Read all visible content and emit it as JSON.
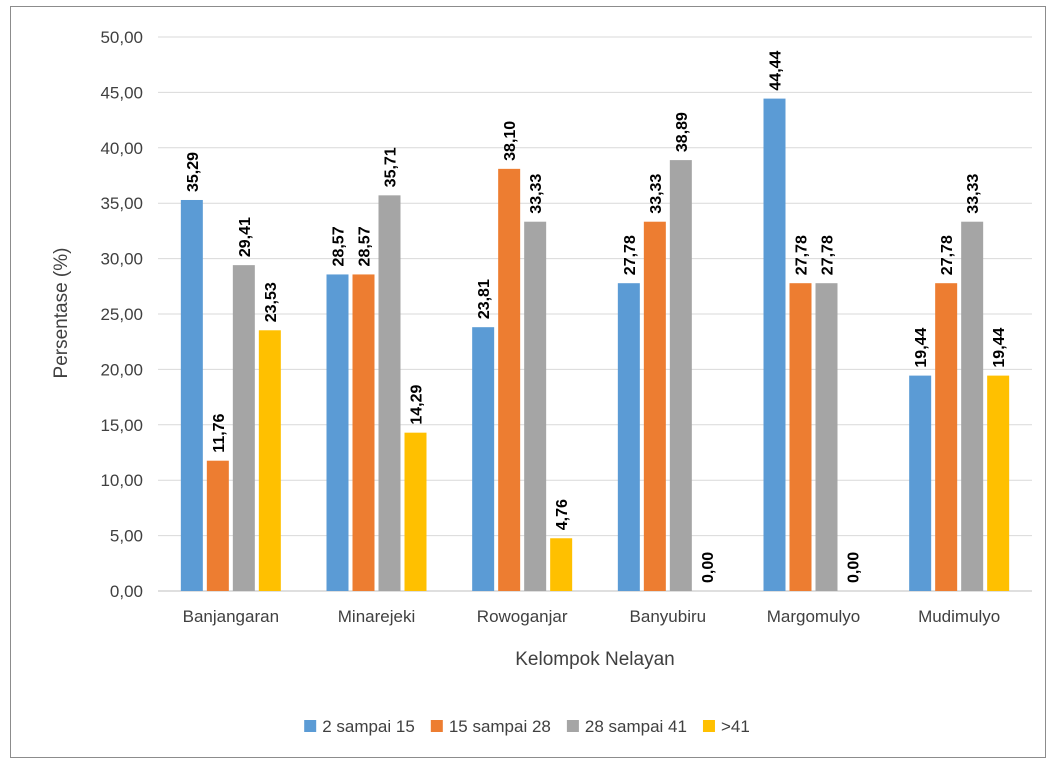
{
  "chart_data": {
    "type": "bar",
    "categories": [
      "Banjangaran",
      "Minarejeki",
      "Rowoganjar",
      "Banyubiru",
      "Margomulyo",
      "Mudimulyo"
    ],
    "series": [
      {
        "name": "2 sampai 15",
        "color": "#5b9bd5",
        "values": [
          35.29,
          28.57,
          23.81,
          27.78,
          44.44,
          19.44
        ],
        "labels": [
          "35,29",
          "28,57",
          "23,81",
          "27,78",
          "44,44",
          "19,44"
        ]
      },
      {
        "name": "15 sampai 28",
        "color": "#ed7d31",
        "values": [
          11.76,
          28.57,
          38.1,
          33.33,
          27.78,
          27.78
        ],
        "labels": [
          "11,76",
          "28,57",
          "38,10",
          "33,33",
          "27,78",
          "27,78"
        ]
      },
      {
        "name": "28 sampai 41",
        "color": "#a5a5a5",
        "values": [
          29.41,
          35.71,
          33.33,
          38.89,
          27.78,
          33.33
        ],
        "labels": [
          "29,41",
          "35,71",
          "33,33",
          "38,89",
          "27,78",
          "33,33"
        ]
      },
      {
        "name": ">41",
        "color": "#ffc000",
        "values": [
          23.53,
          14.29,
          4.76,
          0.0,
          0.0,
          19.44
        ],
        "labels": [
          "23,53",
          "14,29",
          "4,76",
          "0,00",
          "0,00",
          "19,44"
        ]
      }
    ],
    "title": "",
    "xlabel": "Kelompok Nelayan",
    "ylabel": "Persentase (%)",
    "ylim": [
      0,
      50
    ],
    "yticks": [
      "0,00",
      "5,00",
      "10,00",
      "15,00",
      "20,00",
      "25,00",
      "30,00",
      "35,00",
      "40,00",
      "45,00",
      "50,00"
    ],
    "grid": true,
    "legend_position": "bottom",
    "gridline_color": "#d9d9d9"
  }
}
